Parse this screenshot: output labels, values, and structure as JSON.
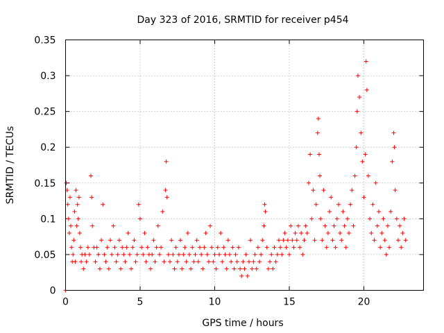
{
  "chart_data": {
    "type": "scatter",
    "title": "Day 323 of 2016, SRMTID for receiver p454",
    "xlabel": "GPS time / hours",
    "ylabel": "SRMTID / TECUs",
    "xlim": [
      0,
      24
    ],
    "ylim": [
      0,
      0.35
    ],
    "xticks": [
      0,
      5,
      10,
      15,
      20
    ],
    "xtick_labels": [
      "0",
      "5",
      "10",
      "15",
      "20"
    ],
    "yticks": [
      0,
      0.05,
      0.1,
      0.15,
      0.2,
      0.25,
      0.3,
      0.35
    ],
    "ytick_labels": [
      "0",
      "0.05",
      "0.1",
      "0.15",
      "0.2",
      "0.25",
      "0.3",
      "0.35"
    ],
    "grid": true,
    "marker": "+",
    "color": "#ff0000",
    "series": [
      {
        "name": "SRMTID",
        "points": [
          [
            0.0,
            0.0
          ],
          [
            0.05,
            0.15
          ],
          [
            0.1,
            0.14
          ],
          [
            0.15,
            0.12
          ],
          [
            0.2,
            0.1
          ],
          [
            0.25,
            0.08
          ],
          [
            0.3,
            0.13
          ],
          [
            0.35,
            0.09
          ],
          [
            0.4,
            0.06
          ],
          [
            0.45,
            0.04
          ],
          [
            0.5,
            0.05
          ],
          [
            0.55,
            0.07
          ],
          [
            0.6,
            0.11
          ],
          [
            0.65,
            0.04
          ],
          [
            0.7,
            0.14
          ],
          [
            0.75,
            0.09
          ],
          [
            0.8,
            0.12
          ],
          [
            0.85,
            0.1
          ],
          [
            0.9,
            0.13
          ],
          [
            0.95,
            0.08
          ],
          [
            1.0,
            0.06
          ],
          [
            1.05,
            0.04
          ],
          [
            1.1,
            0.05
          ],
          [
            1.2,
            0.03
          ],
          [
            1.3,
            0.05
          ],
          [
            1.4,
            0.04
          ],
          [
            1.5,
            0.06
          ],
          [
            1.6,
            0.05
          ],
          [
            1.7,
            0.16
          ],
          [
            1.75,
            0.13
          ],
          [
            1.8,
            0.09
          ],
          [
            1.9,
            0.06
          ],
          [
            2.0,
            0.04
          ],
          [
            2.1,
            0.06
          ],
          [
            2.2,
            0.05
          ],
          [
            2.3,
            0.03
          ],
          [
            2.4,
            0.07
          ],
          [
            2.5,
            0.12
          ],
          [
            2.6,
            0.05
          ],
          [
            2.7,
            0.04
          ],
          [
            2.8,
            0.06
          ],
          [
            2.9,
            0.03
          ],
          [
            3.0,
            0.07
          ],
          [
            3.1,
            0.05
          ],
          [
            3.2,
            0.09
          ],
          [
            3.3,
            0.06
          ],
          [
            3.4,
            0.04
          ],
          [
            3.5,
            0.05
          ],
          [
            3.6,
            0.07
          ],
          [
            3.7,
            0.03
          ],
          [
            3.8,
            0.06
          ],
          [
            3.9,
            0.05
          ],
          [
            4.0,
            0.04
          ],
          [
            4.1,
            0.06
          ],
          [
            4.2,
            0.08
          ],
          [
            4.3,
            0.05
          ],
          [
            4.4,
            0.03
          ],
          [
            4.5,
            0.06
          ],
          [
            4.6,
            0.07
          ],
          [
            4.7,
            0.04
          ],
          [
            4.8,
            0.05
          ],
          [
            4.9,
            0.12
          ],
          [
            5.0,
            0.1
          ],
          [
            5.1,
            0.06
          ],
          [
            5.2,
            0.05
          ],
          [
            5.3,
            0.08
          ],
          [
            5.4,
            0.04
          ],
          [
            5.5,
            0.06
          ],
          [
            5.6,
            0.05
          ],
          [
            5.7,
            0.03
          ],
          [
            5.8,
            0.05
          ],
          [
            5.9,
            0.07
          ],
          [
            6.0,
            0.04
          ],
          [
            6.1,
            0.06
          ],
          [
            6.2,
            0.09
          ],
          [
            6.3,
            0.05
          ],
          [
            6.4,
            0.06
          ],
          [
            6.5,
            0.11
          ],
          [
            6.6,
            0.04
          ],
          [
            6.7,
            0.14
          ],
          [
            6.75,
            0.18
          ],
          [
            6.8,
            0.13
          ],
          [
            6.9,
            0.05
          ],
          [
            7.0,
            0.04
          ],
          [
            7.1,
            0.07
          ],
          [
            7.2,
            0.05
          ],
          [
            7.3,
            0.03
          ],
          [
            7.4,
            0.06
          ],
          [
            7.5,
            0.04
          ],
          [
            7.6,
            0.05
          ],
          [
            7.7,
            0.07
          ],
          [
            7.8,
            0.03
          ],
          [
            7.9,
            0.05
          ],
          [
            8.0,
            0.06
          ],
          [
            8.1,
            0.04
          ],
          [
            8.2,
            0.08
          ],
          [
            8.3,
            0.05
          ],
          [
            8.4,
            0.03
          ],
          [
            8.5,
            0.06
          ],
          [
            8.6,
            0.04
          ],
          [
            8.7,
            0.05
          ],
          [
            8.8,
            0.07
          ],
          [
            8.9,
            0.04
          ],
          [
            9.0,
            0.06
          ],
          [
            9.1,
            0.05
          ],
          [
            9.2,
            0.03
          ],
          [
            9.3,
            0.06
          ],
          [
            9.4,
            0.08
          ],
          [
            9.5,
            0.05
          ],
          [
            9.6,
            0.04
          ],
          [
            9.7,
            0.09
          ],
          [
            9.8,
            0.06
          ],
          [
            9.9,
            0.04
          ],
          [
            10.0,
            0.05
          ],
          [
            10.1,
            0.03
          ],
          [
            10.2,
            0.06
          ],
          [
            10.3,
            0.05
          ],
          [
            10.4,
            0.08
          ],
          [
            10.5,
            0.04
          ],
          [
            10.6,
            0.06
          ],
          [
            10.7,
            0.05
          ],
          [
            10.8,
            0.03
          ],
          [
            10.9,
            0.07
          ],
          [
            11.0,
            0.05
          ],
          [
            11.1,
            0.04
          ],
          [
            11.2,
            0.06
          ],
          [
            11.3,
            0.03
          ],
          [
            11.4,
            0.05
          ],
          [
            11.5,
            0.04
          ],
          [
            11.6,
            0.06
          ],
          [
            11.7,
            0.03
          ],
          [
            11.8,
            0.02
          ],
          [
            11.9,
            0.04
          ],
          [
            12.0,
            0.03
          ],
          [
            12.1,
            0.05
          ],
          [
            12.2,
            0.02
          ],
          [
            12.3,
            0.04
          ],
          [
            12.4,
            0.07
          ],
          [
            12.5,
            0.03
          ],
          [
            12.6,
            0.04
          ],
          [
            12.7,
            0.05
          ],
          [
            12.8,
            0.03
          ],
          [
            12.9,
            0.06
          ],
          [
            13.0,
            0.04
          ],
          [
            13.1,
            0.05
          ],
          [
            13.2,
            0.07
          ],
          [
            13.3,
            0.09
          ],
          [
            13.35,
            0.12
          ],
          [
            13.4,
            0.11
          ],
          [
            13.5,
            0.06
          ],
          [
            13.6,
            0.03
          ],
          [
            13.7,
            0.04
          ],
          [
            13.8,
            0.05
          ],
          [
            13.9,
            0.03
          ],
          [
            14.0,
            0.06
          ],
          [
            14.1,
            0.04
          ],
          [
            14.2,
            0.05
          ],
          [
            14.3,
            0.07
          ],
          [
            14.4,
            0.06
          ],
          [
            14.5,
            0.05
          ],
          [
            14.6,
            0.07
          ],
          [
            14.7,
            0.08
          ],
          [
            14.8,
            0.06
          ],
          [
            14.9,
            0.07
          ],
          [
            15.0,
            0.05
          ],
          [
            15.1,
            0.09
          ],
          [
            15.2,
            0.07
          ],
          [
            15.3,
            0.06
          ],
          [
            15.4,
            0.08
          ],
          [
            15.5,
            0.07
          ],
          [
            15.6,
            0.09
          ],
          [
            15.7,
            0.06
          ],
          [
            15.8,
            0.08
          ],
          [
            15.9,
            0.05
          ],
          [
            16.0,
            0.07
          ],
          [
            16.1,
            0.09
          ],
          [
            16.2,
            0.08
          ],
          [
            16.3,
            0.15
          ],
          [
            16.4,
            0.19
          ],
          [
            16.5,
            0.1
          ],
          [
            16.6,
            0.14
          ],
          [
            16.7,
            0.07
          ],
          [
            16.8,
            0.12
          ],
          [
            16.9,
            0.22
          ],
          [
            16.95,
            0.24
          ],
          [
            17.0,
            0.19
          ],
          [
            17.05,
            0.16
          ],
          [
            17.1,
            0.1
          ],
          [
            17.2,
            0.07
          ],
          [
            17.3,
            0.14
          ],
          [
            17.4,
            0.09
          ],
          [
            17.5,
            0.06
          ],
          [
            17.6,
            0.08
          ],
          [
            17.7,
            0.11
          ],
          [
            17.8,
            0.13
          ],
          [
            17.9,
            0.07
          ],
          [
            18.0,
            0.09
          ],
          [
            18.1,
            0.06
          ],
          [
            18.2,
            0.1
          ],
          [
            18.3,
            0.12
          ],
          [
            18.4,
            0.08
          ],
          [
            18.5,
            0.07
          ],
          [
            18.6,
            0.11
          ],
          [
            18.7,
            0.09
          ],
          [
            18.8,
            0.06
          ],
          [
            18.9,
            0.1
          ],
          [
            19.0,
            0.08
          ],
          [
            19.1,
            0.12
          ],
          [
            19.2,
            0.14
          ],
          [
            19.3,
            0.09
          ],
          [
            19.4,
            0.16
          ],
          [
            19.5,
            0.2
          ],
          [
            19.55,
            0.25
          ],
          [
            19.6,
            0.3
          ],
          [
            19.7,
            0.27
          ],
          [
            19.8,
            0.22
          ],
          [
            19.9,
            0.18
          ],
          [
            20.0,
            0.13
          ],
          [
            20.1,
            0.19
          ],
          [
            20.15,
            0.32
          ],
          [
            20.2,
            0.28
          ],
          [
            20.3,
            0.16
          ],
          [
            20.4,
            0.1
          ],
          [
            20.5,
            0.08
          ],
          [
            20.6,
            0.12
          ],
          [
            20.7,
            0.07
          ],
          [
            20.8,
            0.15
          ],
          [
            20.9,
            0.09
          ],
          [
            21.0,
            0.11
          ],
          [
            21.1,
            0.06
          ],
          [
            21.2,
            0.08
          ],
          [
            21.3,
            0.1
          ],
          [
            21.4,
            0.07
          ],
          [
            21.5,
            0.05
          ],
          [
            21.6,
            0.09
          ],
          [
            21.7,
            0.06
          ],
          [
            21.8,
            0.11
          ],
          [
            21.9,
            0.18
          ],
          [
            22.0,
            0.22
          ],
          [
            22.05,
            0.2
          ],
          [
            22.1,
            0.14
          ],
          [
            22.2,
            0.1
          ],
          [
            22.3,
            0.07
          ],
          [
            22.4,
            0.09
          ],
          [
            22.5,
            0.06
          ],
          [
            22.6,
            0.08
          ],
          [
            22.7,
            0.1
          ],
          [
            22.8,
            0.07
          ]
        ]
      }
    ]
  }
}
